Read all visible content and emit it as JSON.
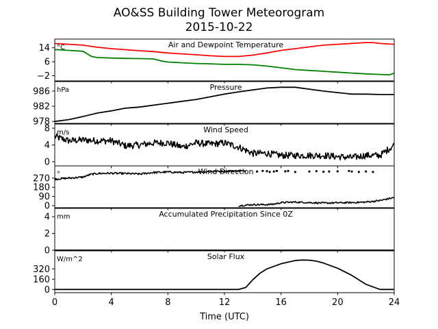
{
  "title_line1": "AO&SS Building Tower Meteorogram",
  "title_line2": "2015-10-22",
  "chart_data": {
    "type": "line",
    "xlabel": "Time (UTC)",
    "xlim": [
      0,
      24
    ],
    "xticks": [
      0,
      4,
      8,
      12,
      16,
      20,
      24
    ],
    "panels": [
      {
        "title": "Air and Dewpoint Temperature",
        "unit": "°C",
        "ylim": [
          -5,
          19
        ],
        "yticks": [
          14,
          6,
          -2
        ],
        "series": [
          {
            "color": "#ff0000",
            "style": "line",
            "x": [
              0,
              1,
              2,
              3,
              4,
              5,
              6,
              7,
              8,
              9,
              10,
              11,
              12,
              13,
              14,
              15,
              16,
              17,
              18,
              19,
              20,
              21,
              22,
              22.5,
              23,
              24
            ],
            "y": [
              16.5,
              16,
              15.5,
              14.3,
              13.5,
              12.9,
              12.3,
              11.8,
              11,
              10.5,
              10,
              9.4,
              9,
              9,
              9.8,
              11,
              12.5,
              13.5,
              14.5,
              15.5,
              16,
              16.5,
              17,
              17,
              16.5,
              16
            ]
          },
          {
            "color": "#008000",
            "style": "line",
            "x": [
              0,
              1,
              2,
              2.6,
              3,
              4,
              5,
              6,
              7,
              7.5,
              8,
              9,
              10,
              11,
              12,
              13,
              14,
              15,
              16,
              17,
              18,
              19,
              20,
              21,
              22,
              23,
              23.7,
              24
            ],
            "y": [
              13,
              12.5,
              12,
              9,
              8.4,
              8.1,
              7.9,
              7.8,
              7.6,
              6.5,
              5.8,
              5.4,
              5,
              4.8,
              4.5,
              4.5,
              4.2,
              3.5,
              2.5,
              1.5,
              1,
              0.5,
              0,
              -0.5,
              -1,
              -1.3,
              -1.5,
              -0.5
            ]
          }
        ]
      },
      {
        "title": "Pressure",
        "unit": "hPa",
        "ylim": [
          977.5,
          988.5
        ],
        "yticks": [
          986,
          982,
          978
        ],
        "series": [
          {
            "color": "#000000",
            "style": "line",
            "x": [
              0,
              1,
              2,
              3,
              4,
              5,
              6,
              7,
              8,
              9,
              10,
              11,
              12,
              13,
              14,
              15,
              16,
              17,
              18,
              19,
              20,
              21,
              22,
              23,
              24
            ],
            "y": [
              978,
              978.5,
              979.3,
              980.2,
              980.8,
              981.5,
              981.8,
              982.3,
              982.8,
              983.3,
              983.8,
              984.5,
              985.2,
              985.8,
              986.3,
              986.8,
              987,
              987,
              986.5,
              986,
              985.6,
              985.2,
              985.2,
              985.1,
              985.1
            ]
          }
        ]
      },
      {
        "title": "Wind Speed",
        "unit": "m/s",
        "ylim": [
          -1,
          9
        ],
        "yticks": [
          8,
          4,
          0
        ],
        "series": [
          {
            "color": "#000000",
            "style": "noisy-line",
            "noise": 0.8,
            "x": [
              0,
              1,
              2,
              3,
              4,
              5,
              6,
              7,
              8,
              9,
              10,
              11,
              12,
              13,
              14,
              15,
              16,
              17,
              18,
              19,
              20,
              21,
              22,
              23,
              24
            ],
            "y": [
              6,
              5,
              5.2,
              5,
              5,
              3.8,
              4,
              4.5,
              4.5,
              3.5,
              4.5,
              4.2,
              4.5,
              3.5,
              2,
              2,
              1.5,
              1.5,
              1.5,
              1.5,
              1.2,
              1,
              1.5,
              1.5,
              4
            ]
          }
        ]
      },
      {
        "title": "Wind Direction",
        "unit": "°",
        "ylim": [
          -20,
          390
        ],
        "yticks": [
          270,
          180,
          90,
          0
        ],
        "series": [
          {
            "color": "#000000",
            "style": "noisy-line",
            "noise": 9,
            "x": [
              0,
              1,
              2,
              2.5,
              3,
              4,
              5,
              6,
              7,
              8,
              9,
              10,
              11,
              12,
              13,
              13.5
            ],
            "y": [
              260,
              270,
              280,
              305,
              315,
              318,
              315,
              310,
              325,
              330,
              325,
              330,
              335,
              338,
              340,
              340
            ]
          },
          {
            "color": "#000000",
            "style": "scatter",
            "x": [
              14.3,
              14.7,
              15,
              15.2,
              15.5,
              15.7,
              16.3,
              16.5,
              17,
              18,
              18.5,
              19,
              19.4,
              20,
              20.8,
              21,
              21.5,
              22,
              22.5
            ],
            "y": [
              335,
              340,
              338,
              330,
              335,
              340,
              336,
              340,
              330,
              335,
              338,
              332,
              335,
              336,
              340,
              335,
              330,
              335,
              330
            ]
          },
          {
            "color": "#000000",
            "style": "noisy-line",
            "noise": 8,
            "x": [
              13,
              14,
              15,
              15.5,
              16,
              17,
              18,
              19,
              20,
              21,
              22,
              23,
              24
            ],
            "y": [
              0,
              10,
              10,
              15,
              30,
              35,
              30,
              25,
              28,
              30,
              35,
              50,
              80
            ]
          }
        ]
      },
      {
        "title": "Accumulated Precipitation Since 0Z",
        "unit": "mm",
        "ylim": [
          0,
          5
        ],
        "yticks": [
          4,
          2,
          0
        ],
        "series": [
          {
            "color": "#000000",
            "style": "line",
            "x": [
              0,
              24
            ],
            "y": [
              0,
              0
            ]
          }
        ]
      },
      {
        "title": "Solar Flux",
        "unit": "W/m^2",
        "ylim": [
          -50,
          600
        ],
        "yticks": [
          320,
          160,
          0
        ],
        "series": [
          {
            "color": "#000000",
            "style": "line",
            "x": [
              0,
              12,
              13,
              13.5,
              14,
              14.5,
              15,
              16,
              17,
              17.5,
              18,
              18.5,
              19,
              20,
              21,
              21.5,
              22,
              23,
              23.5,
              24
            ],
            "y": [
              0,
              0,
              0,
              30,
              150,
              250,
              320,
              400,
              450,
              458,
              455,
              440,
              410,
              330,
              220,
              150,
              80,
              0,
              0,
              0
            ]
          }
        ]
      }
    ]
  }
}
